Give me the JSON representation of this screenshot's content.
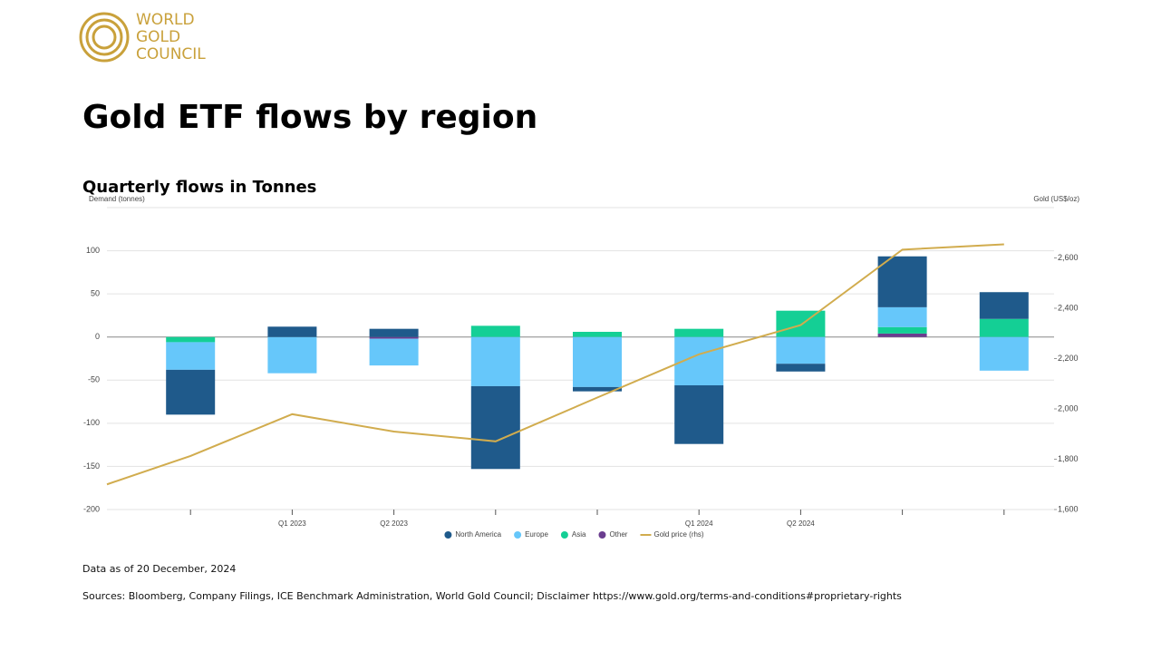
{
  "logo": [
    "WORLD",
    "GOLD",
    "COUNCIL"
  ],
  "chart_data": {
    "type": "bar",
    "stacked": true,
    "title": "Gold ETF flows by region",
    "subtitle": "Quarterly flows in Tonnes",
    "y_label": "Demand (tonnes)",
    "y2_label": "Gold (US$/oz)",
    "categories": [
      null,
      null,
      "Q1 2023",
      "Q2 2023",
      null,
      null,
      "Q1 2024",
      "Q2 2024",
      null,
      null
    ],
    "ylim": [
      -200,
      150
    ],
    "yticks": [
      -200,
      -150,
      -100,
      -50,
      0,
      50,
      100
    ],
    "y2lim": [
      1600,
      2800
    ],
    "y2ticks": [
      {
        "value": 1600,
        "label": "1,600"
      },
      {
        "value": 1800,
        "label": "1,800"
      },
      {
        "value": 2000,
        "label": "2,000"
      },
      {
        "value": 2200,
        "label": "2,200"
      },
      {
        "value": 2400,
        "label": "2,400"
      },
      {
        "value": 2600,
        "label": "2,600"
      }
    ],
    "grid": true,
    "series": [
      {
        "name": "North America",
        "color": "#1f5a8b",
        "values": [
          null,
          -52,
          12,
          9.5,
          -96,
          -5,
          -68,
          -9,
          59,
          31
        ]
      },
      {
        "name": "Europe",
        "color": "#66c7fa",
        "values": [
          null,
          -32,
          -42,
          -31,
          -57,
          -58,
          -56,
          -31,
          23,
          -39
        ]
      },
      {
        "name": "Asia",
        "color": "#14cf95",
        "values": [
          null,
          -6,
          0,
          0,
          13,
          6,
          9.5,
          30.5,
          7.5,
          21
        ]
      },
      {
        "name": "Other",
        "color": "#6a3d8f",
        "values": [
          null,
          0,
          0,
          -2,
          0,
          0,
          0,
          0,
          4,
          0
        ]
      },
      {
        "name": "Gold price (rhs)",
        "type": "line",
        "axis": "y2",
        "color": "#d1ac4e",
        "values": [
          1700,
          1813,
          1979,
          1910,
          1871,
          2045,
          2217,
          2333,
          2633,
          2654
        ]
      }
    ]
  },
  "notes": [
    "Data as of 20 December, 2024",
    "Sources: Bloomberg, Company Filings, ICE Benchmark Administration, World Gold Council; Disclaimer https://www.gold.org/terms-and-conditions#proprietary-rights"
  ]
}
